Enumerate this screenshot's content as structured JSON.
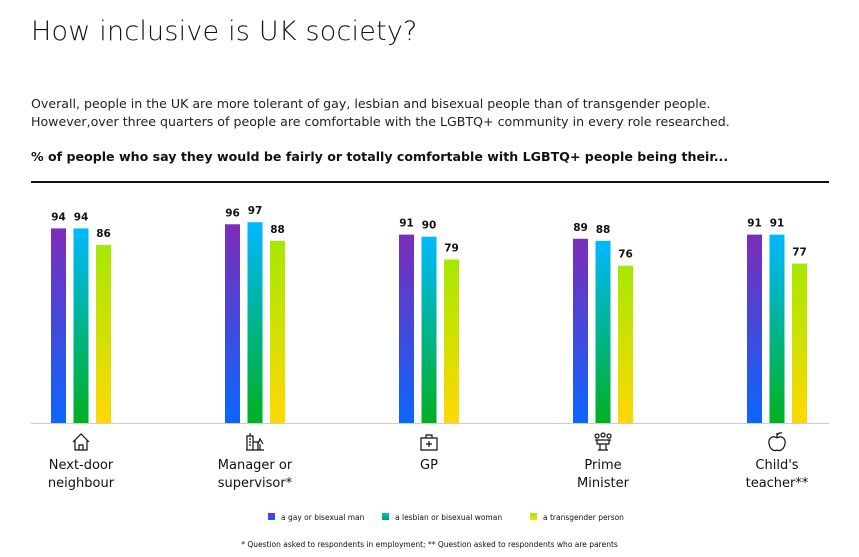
{
  "title": "How inclusive is UK society?",
  "description": [
    "Overall, people in the UK are more tolerant of gay, lesbian and bisexual people than of transgender people.",
    "However,over three quarters of people are comfortable with the LGBTQ+ community in every role researched."
  ],
  "subtitle": "% of people who say they would be fairly or totally comfortable with LGBTQ+ people being their...",
  "footnote": "* Question asked to respondents in employment; ** Question asked to respondents who are parents",
  "chart_data": {
    "type": "bar",
    "categories": [
      [
        "Next-door",
        "neighbour"
      ],
      [
        "Manager or",
        "supervisor*"
      ],
      [
        "GP"
      ],
      [
        "Prime",
        "Minister"
      ],
      [
        "Child's",
        "teacher**"
      ]
    ],
    "category_icons": [
      "house-icon",
      "office-building-icon",
      "medical-bag-icon",
      "podium-icon",
      "apple-icon"
    ],
    "series": [
      {
        "name": "a gay or bisexual man",
        "values": [
          94,
          96,
          91,
          89,
          91
        ],
        "colors": [
          "#7d2cb8",
          "#0a66ff"
        ]
      },
      {
        "name": "a lesbian or bisexual woman",
        "values": [
          94,
          97,
          90,
          88,
          91
        ],
        "colors": [
          "#00b8ff",
          "#00b020"
        ]
      },
      {
        "name": "a transgender person",
        "values": [
          86,
          88,
          79,
          76,
          77
        ],
        "colors": [
          "#a6e800",
          "#ffd800"
        ]
      }
    ],
    "ylim": [
      0,
      100
    ],
    "grid": false,
    "legend": "bottom"
  }
}
